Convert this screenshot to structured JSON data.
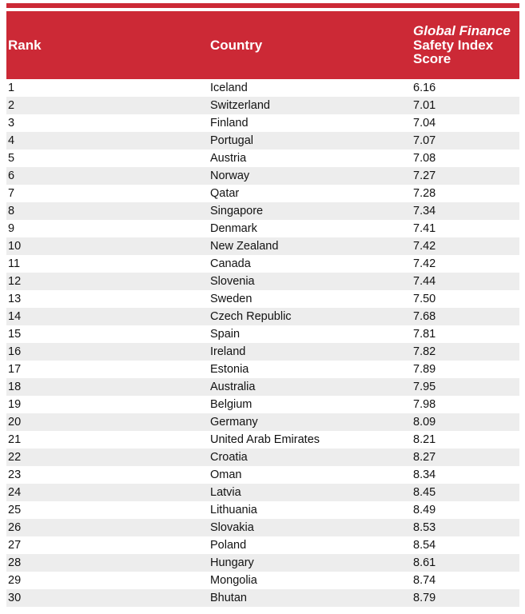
{
  "colors": {
    "header_red": "#CC2936",
    "row_alt_gray": "#EDEDED",
    "header_text": "#FFFFFF",
    "body_text": "#121212"
  },
  "header": {
    "rank_label": "Rank",
    "country_label": "Country",
    "score_label_line1": "Global Finance",
    "score_label_line2": "Safety Index",
    "score_label_line3": "Score"
  },
  "table": {
    "rows": [
      {
        "rank": "1",
        "country": "Iceland",
        "score": "6.16"
      },
      {
        "rank": "2",
        "country": "Switzerland",
        "score": "7.01"
      },
      {
        "rank": "3",
        "country": "Finland",
        "score": "7.04"
      },
      {
        "rank": "4",
        "country": "Portugal",
        "score": "7.07"
      },
      {
        "rank": "5",
        "country": "Austria",
        "score": "7.08"
      },
      {
        "rank": "6",
        "country": "Norway",
        "score": "7.27"
      },
      {
        "rank": "7",
        "country": "Qatar",
        "score": "7.28"
      },
      {
        "rank": "8",
        "country": "Singapore",
        "score": "7.34"
      },
      {
        "rank": "9",
        "country": "Denmark",
        "score": "7.41"
      },
      {
        "rank": "10",
        "country": "New Zealand",
        "score": "7.42"
      },
      {
        "rank": "11",
        "country": "Canada",
        "score": "7.42"
      },
      {
        "rank": "12",
        "country": "Slovenia",
        "score": "7.44"
      },
      {
        "rank": "13",
        "country": "Sweden",
        "score": "7.50"
      },
      {
        "rank": "14",
        "country": "Czech Republic",
        "score": "7.68"
      },
      {
        "rank": "15",
        "country": "Spain",
        "score": "7.81"
      },
      {
        "rank": "16",
        "country": "Ireland",
        "score": "7.82"
      },
      {
        "rank": "17",
        "country": "Estonia",
        "score": "7.89"
      },
      {
        "rank": "18",
        "country": "Australia",
        "score": "7.95"
      },
      {
        "rank": "19",
        "country": "Belgium",
        "score": "7.98"
      },
      {
        "rank": "20",
        "country": "Germany",
        "score": "8.09"
      },
      {
        "rank": "21",
        "country": "United Arab Emirates",
        "score": "8.21"
      },
      {
        "rank": "22",
        "country": "Croatia",
        "score": "8.27"
      },
      {
        "rank": "23",
        "country": "Oman",
        "score": "8.34"
      },
      {
        "rank": "24",
        "country": "Latvia",
        "score": "8.45"
      },
      {
        "rank": "25",
        "country": "Lithuania",
        "score": "8.49"
      },
      {
        "rank": "26",
        "country": "Slovakia",
        "score": "8.53"
      },
      {
        "rank": "27",
        "country": "Poland",
        "score": "8.54"
      },
      {
        "rank": "28",
        "country": "Hungary",
        "score": "8.61"
      },
      {
        "rank": "29",
        "country": "Mongolia",
        "score": "8.74"
      },
      {
        "rank": "30",
        "country": "Bhutan",
        "score": "8.79"
      }
    ]
  },
  "chart_data": {
    "type": "table",
    "title": "Global Finance Safety Index Score",
    "columns": [
      "Rank",
      "Country",
      "Global Finance Safety Index Score"
    ],
    "rows": [
      [
        1,
        "Iceland",
        6.16
      ],
      [
        2,
        "Switzerland",
        7.01
      ],
      [
        3,
        "Finland",
        7.04
      ],
      [
        4,
        "Portugal",
        7.07
      ],
      [
        5,
        "Austria",
        7.08
      ],
      [
        6,
        "Norway",
        7.27
      ],
      [
        7,
        "Qatar",
        7.28
      ],
      [
        8,
        "Singapore",
        7.34
      ],
      [
        9,
        "Denmark",
        7.41
      ],
      [
        10,
        "New Zealand",
        7.42
      ],
      [
        11,
        "Canada",
        7.42
      ],
      [
        12,
        "Slovenia",
        7.44
      ],
      [
        13,
        "Sweden",
        7.5
      ],
      [
        14,
        "Czech Republic",
        7.68
      ],
      [
        15,
        "Spain",
        7.81
      ],
      [
        16,
        "Ireland",
        7.82
      ],
      [
        17,
        "Estonia",
        7.89
      ],
      [
        18,
        "Australia",
        7.95
      ],
      [
        19,
        "Belgium",
        7.98
      ],
      [
        20,
        "Germany",
        8.09
      ],
      [
        21,
        "United Arab Emirates",
        8.21
      ],
      [
        22,
        "Croatia",
        8.27
      ],
      [
        23,
        "Oman",
        8.34
      ],
      [
        24,
        "Latvia",
        8.45
      ],
      [
        25,
        "Lithuania",
        8.49
      ],
      [
        26,
        "Slovakia",
        8.53
      ],
      [
        27,
        "Poland",
        8.54
      ],
      [
        28,
        "Hungary",
        8.61
      ],
      [
        29,
        "Mongolia",
        8.74
      ],
      [
        30,
        "Bhutan",
        8.79
      ]
    ]
  }
}
